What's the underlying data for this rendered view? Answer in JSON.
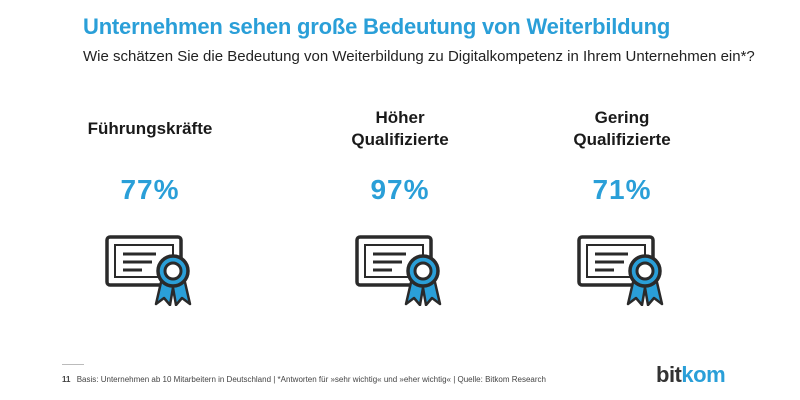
{
  "title": "Unternehmen sehen große Bedeutung von Weiterbildung",
  "subtitle": "Wie schätzen Sie die Bedeutung von Weiterbildung zu Digitalkompetenz in Ihrem Unternehmen ein*?",
  "columns": [
    {
      "label_line1": "Führungskräfte",
      "label_line2": "",
      "value": "77%",
      "icon": "certificate-icon"
    },
    {
      "label_line1": "Höher",
      "label_line2": "Qualifizierte",
      "value": "97%",
      "icon": "certificate-icon"
    },
    {
      "label_line1": "Gering",
      "label_line2": "Qualifizierte",
      "value": "71%",
      "icon": "certificate-icon"
    }
  ],
  "footer": {
    "page_number": "11",
    "text": "Basis: Unternehmen ab 10 Mitarbeitern in Deutschland | *Antworten für »sehr wichtig« und »eher wichtig« | Quelle: Bitkom Research"
  },
  "logo": {
    "part1": "bit",
    "part2": "kom"
  },
  "colors": {
    "accent": "#2a9fd8",
    "text": "#1a1a1a",
    "icon": "#2a2a2a"
  }
}
